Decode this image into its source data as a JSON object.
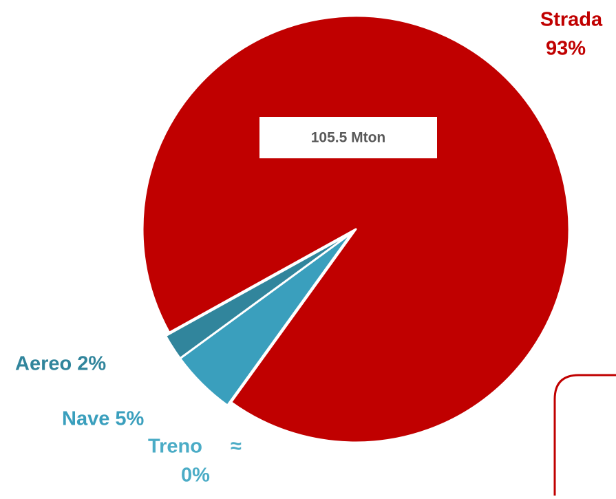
{
  "chart_data": {
    "type": "pie",
    "categories": [
      "Strada",
      "Nave",
      "Aereo",
      "Treno"
    ],
    "values": [
      93,
      5,
      2,
      0
    ],
    "value_labels": [
      "93%",
      "5%",
      "2%",
      "≈ 0%"
    ],
    "colors": [
      "#c00000",
      "#3a9fbd",
      "#31859c",
      "#4bacc6"
    ],
    "annotation": "105.5 Mton"
  }
}
